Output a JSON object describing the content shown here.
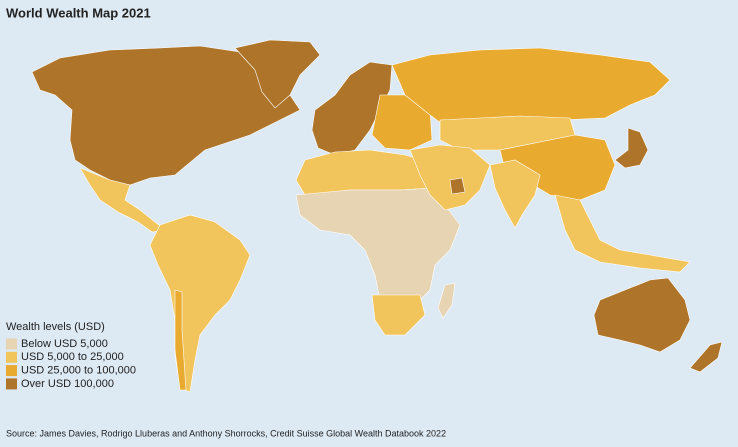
{
  "header": {
    "title": "World Wealth Map 2021"
  },
  "legend": {
    "title": "Wealth levels (USD)",
    "items": [
      {
        "label": "Below USD 5,000",
        "color": "#e6d4b2"
      },
      {
        "label": "USD 5,000 to 25,000",
        "color": "#f1c45c"
      },
      {
        "label": "USD 25,000 to 100,000",
        "color": "#e9aa30"
      },
      {
        "label": "Over USD 100,000",
        "color": "#ae752a"
      }
    ]
  },
  "footer": {
    "source": "Source: James Davies, Rodrigo Lluberas and Anthony Shorrocks, Credit Suisse Global Wealth Databook 2022"
  }
}
